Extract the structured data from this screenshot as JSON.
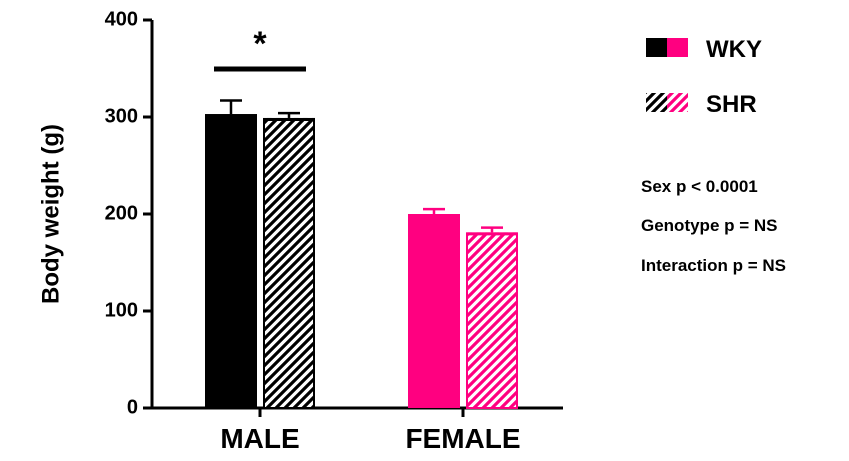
{
  "chart_data": {
    "type": "bar",
    "categories": [
      "MALE",
      "FEMALE"
    ],
    "ylabel": "Body weight (g)",
    "xlabel": "",
    "ylim": [
      0,
      400
    ],
    "yticks": [
      "0",
      "100",
      "200",
      "300",
      "400"
    ],
    "grid": false,
    "legend_position": "right",
    "series": [
      {
        "name": "WKY",
        "pattern": "solid",
        "colors": [
          "#000000",
          "#ff0080"
        ],
        "values": [
          303,
          200
        ],
        "errors": [
          14,
          5
        ]
      },
      {
        "name": "SHR",
        "pattern": "hatched",
        "colors": [
          "#000000",
          "#ff0080"
        ],
        "values": [
          299,
          181
        ],
        "errors": [
          5,
          5
        ]
      }
    ],
    "significance": {
      "label": "*",
      "category": "MALE"
    },
    "annotations": [
      "Sex p < 0.0001",
      "Genotype p = NS",
      "Interaction p = NS"
    ]
  }
}
